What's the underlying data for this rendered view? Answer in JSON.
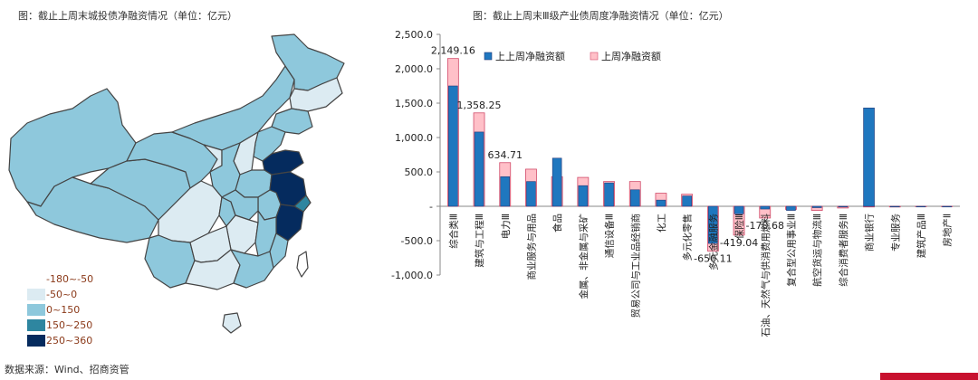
{
  "map": {
    "title": "图：截止上周末城投债净融资情况（单位：亿元）",
    "legend": [
      {
        "label": "-180~-50",
        "color": "#ffffff"
      },
      {
        "label": "-50~0",
        "color": "#dcebf2"
      },
      {
        "label": "0~150",
        "color": "#8ec8dc"
      },
      {
        "label": "150~250",
        "color": "#2e86a0"
      },
      {
        "label": "250~360",
        "color": "#052b5e"
      }
    ]
  },
  "source": "数据来源：Wind、招商资管",
  "chart_data": {
    "type": "bar",
    "title": "图：截止上周末Ⅲ级产业债周度净融资情况（单位：亿元）",
    "categories": [
      "综合类Ⅲ",
      "建筑与工程Ⅲ",
      "电力Ⅲ",
      "商业服务与用品",
      "食品",
      "金属、非金属与采矿",
      "通信设备Ⅲ",
      "贸易公司与工业品经销商",
      "化工",
      "多元化零售",
      "多元金融服务",
      "保险Ⅲ",
      "石油、天然气与供消费用燃料",
      "复合型公用事业Ⅲ",
      "航空货运与物流Ⅲ",
      "综合消费者服务Ⅲ",
      "商业银行",
      "专业服务",
      "建筑产品Ⅲ",
      "房地产Ⅱ"
    ],
    "series": [
      {
        "name": "上上周净融资额",
        "color": "#1f77bf",
        "values": [
          1750,
          1080,
          430,
          360,
          700,
          300,
          340,
          240,
          90,
          150,
          -540,
          -110,
          -40,
          -60,
          -20,
          -10,
          1430,
          -10,
          -10,
          -10
        ]
      },
      {
        "name": "上周净融资额",
        "color": "#ffc0c8",
        "values": [
          2149.16,
          1358.25,
          634.71,
          540,
          430,
          420,
          360,
          360,
          190,
          175,
          -650.11,
          -419.04,
          -170.68,
          -45,
          -60,
          -25,
          -10,
          -10,
          -5,
          -5
        ]
      }
    ],
    "data_labels": [
      {
        "category": "综合类Ⅲ",
        "text": "2,149.16"
      },
      {
        "category": "建筑与工程Ⅲ",
        "text": "1,358.25"
      },
      {
        "category": "电力Ⅲ",
        "text": "634.71"
      },
      {
        "category": "多元金融服务",
        "text": "-650.11"
      },
      {
        "category": "保险Ⅲ",
        "text": "-419.04"
      },
      {
        "category": "石油、天然气与供消费用燃料",
        "text": "-170.68"
      }
    ],
    "y_ticks": [
      "2,500.0",
      "2,000.0",
      "1,500.0",
      "1,000.0",
      "500.0",
      "-",
      "-500.0",
      "-1,000.0"
    ],
    "y_tick_values": [
      2500,
      2000,
      1500,
      1000,
      500,
      0,
      -500,
      -1000
    ],
    "ylim": [
      -1000,
      2500
    ],
    "grid": false,
    "legend_position": "top-center"
  }
}
